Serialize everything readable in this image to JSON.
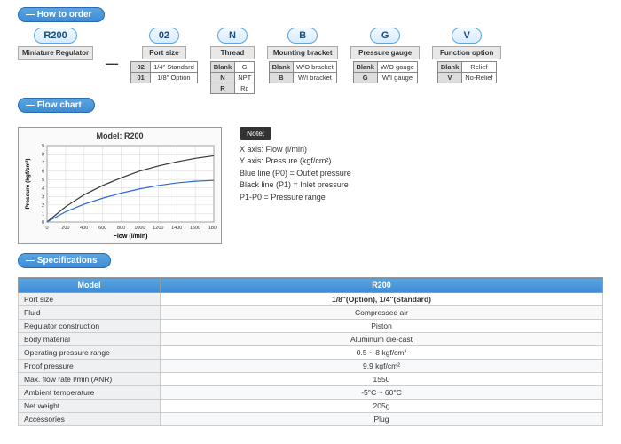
{
  "headers": {
    "order": "How to order",
    "flow": "Flow chart",
    "spec": "Specifications"
  },
  "order": {
    "model": {
      "pill": "R200",
      "label": "Miniature Regulator"
    },
    "port": {
      "pill": "02",
      "label": "Port size",
      "rows": [
        [
          "02",
          "1/4\" Standard"
        ],
        [
          "01",
          "1/8\" Option"
        ]
      ]
    },
    "thread": {
      "pill": "N",
      "label": "Thread",
      "rows": [
        [
          "Blank",
          "G"
        ],
        [
          "N",
          "NPT"
        ],
        [
          "R",
          "Rc"
        ]
      ]
    },
    "mount": {
      "pill": "B",
      "label": "Mounting bracket",
      "rows": [
        [
          "Blank",
          "W/O bracket"
        ],
        [
          "B",
          "W/I bracket"
        ]
      ]
    },
    "gauge": {
      "pill": "G",
      "label": "Pressure gauge",
      "rows": [
        [
          "Blank",
          "W/O gauge"
        ],
        [
          "G",
          "W/I gauge"
        ]
      ]
    },
    "func": {
      "pill": "V",
      "label": "Function option",
      "rows": [
        [
          "Blank",
          "Relief"
        ],
        [
          "V",
          "No-Relief"
        ]
      ]
    }
  },
  "chart": {
    "title": "Model: R200",
    "xlabel": "Flow (l/min)",
    "ylabel": "Pressure (kgf/cm²)",
    "xlim": [
      0,
      1800
    ],
    "ylim": [
      0,
      9
    ],
    "xtick": 200,
    "ytick": 1,
    "background": "#ffffff",
    "grid": "#cccccc",
    "blue": "#2a6bd6",
    "black": "#333333",
    "series_blue": [
      [
        0,
        0
      ],
      [
        200,
        1.2
      ],
      [
        400,
        2.1
      ],
      [
        600,
        2.8
      ],
      [
        800,
        3.4
      ],
      [
        1000,
        3.9
      ],
      [
        1200,
        4.3
      ],
      [
        1400,
        4.6
      ],
      [
        1600,
        4.8
      ],
      [
        1800,
        4.9
      ]
    ],
    "series_black": [
      [
        0,
        0
      ],
      [
        200,
        1.8
      ],
      [
        400,
        3.2
      ],
      [
        600,
        4.3
      ],
      [
        800,
        5.2
      ],
      [
        1000,
        6.0
      ],
      [
        1200,
        6.6
      ],
      [
        1400,
        7.1
      ],
      [
        1600,
        7.5
      ],
      [
        1800,
        7.8
      ]
    ]
  },
  "note": {
    "title": "Note:",
    "lines": [
      "X axis: Flow (l/min)",
      "Y axis: Pressure (kgf/cm²)",
      "Blue line (P0) = Outlet pressure",
      "Black line (P1) = Inlet pressure",
      "P1-P0 = Pressure range"
    ]
  },
  "spec": {
    "model_header": "Model",
    "value_header": "R200",
    "rows": [
      [
        "Port size",
        "1/8\"(Option), 1/4\"(Standard)"
      ],
      [
        "Fluid",
        "Compressed air"
      ],
      [
        "Regulator construction",
        "Piston"
      ],
      [
        "Body material",
        "Aluminum die-cast"
      ],
      [
        "Operating pressure range",
        "0.5 ~ 8 kgf/cm²"
      ],
      [
        "Proof pressure",
        "9.9 kgf/cm²"
      ],
      [
        "Max. flow rate  l/min (ANR)",
        "1550"
      ],
      [
        "Ambient temperature",
        "-5°C ~ 60°C"
      ],
      [
        "Net weight",
        "205g"
      ],
      [
        "Accessories",
        "Plug"
      ]
    ]
  }
}
